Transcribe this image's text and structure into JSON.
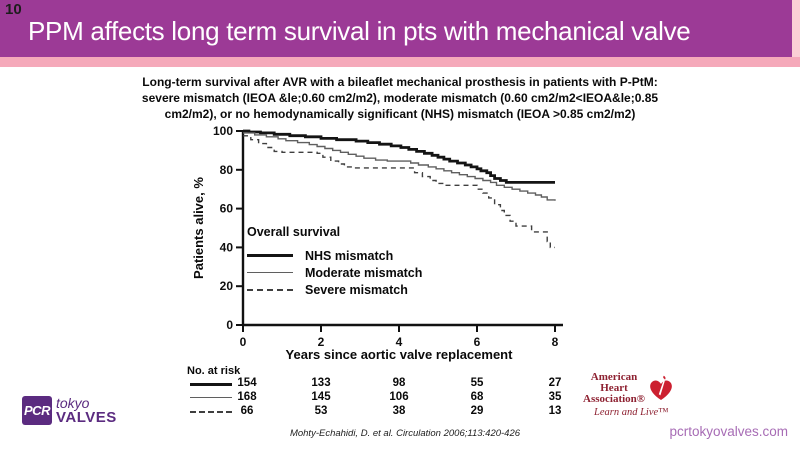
{
  "slide": {
    "number": "10",
    "header_title": "PPM affects long term survival in pts with mechanical valve",
    "citation": "Mohty-Echahidi, D. et al. Circulation 2006;113:420-426",
    "footer_site": "pcrtokyovalves.com"
  },
  "colors": {
    "header_purple": "#9C3A96",
    "stripe_pink": "#F5A9BA",
    "edge_pink": "#FBCFD5",
    "brand_purple": "#5B2B80",
    "site_purple": "#A76CB5",
    "aha_red": "#8E2232",
    "heart_red": "#CC2030"
  },
  "subtitle": {
    "lines": [
      "Long-term survival after AVR with a bileaflet mechanical prosthesis in patients with P-PtM:",
      "severe mismatch (IEOA &le;0.60 cm2/m2), moderate mismatch (0.60 cm2/m2<IEOA&le;0.85",
      "cm2/m2), or no hemodynamically significant (NHS) mismatch (IEOA >0.85 cm2/m2)"
    ]
  },
  "chart_data": {
    "type": "line",
    "subtype": "kaplan-meier-step",
    "xlabel": "Years since aortic valve replacement",
    "ylabel": "Patients alive, %",
    "xlim": [
      0,
      8
    ],
    "ylim": [
      0,
      100
    ],
    "xticks": [
      0,
      2,
      4,
      6,
      8
    ],
    "yticks": [
      0,
      20,
      40,
      60,
      80,
      100
    ],
    "grid": false,
    "legend_title": "Overall survival",
    "legend_position": "inside-lower-left",
    "series": [
      {
        "name": "NHS mismatch",
        "style": "thick-solid",
        "color": "#141414",
        "points": [
          [
            0,
            100
          ],
          [
            0.15,
            99.5
          ],
          [
            0.45,
            99
          ],
          [
            0.8,
            98.3
          ],
          [
            1.2,
            97.6
          ],
          [
            1.6,
            97
          ],
          [
            2.0,
            96.2
          ],
          [
            2.4,
            95.5
          ],
          [
            2.9,
            94.8
          ],
          [
            3.2,
            94
          ],
          [
            3.5,
            93.2
          ],
          [
            3.8,
            92.3
          ],
          [
            4.05,
            91.5
          ],
          [
            4.25,
            90.5
          ],
          [
            4.45,
            89.5
          ],
          [
            4.65,
            88.5
          ],
          [
            4.85,
            87.5
          ],
          [
            5.0,
            86.5
          ],
          [
            5.15,
            85.5
          ],
          [
            5.3,
            84.5
          ],
          [
            5.5,
            83.5
          ],
          [
            5.7,
            82.5
          ],
          [
            5.85,
            81.5
          ],
          [
            6.0,
            80.5
          ],
          [
            6.1,
            79.5
          ],
          [
            6.25,
            78.5
          ],
          [
            6.35,
            77
          ],
          [
            6.45,
            75.5
          ],
          [
            6.6,
            74.5
          ],
          [
            6.75,
            73.5
          ],
          [
            8,
            73.5
          ]
        ]
      },
      {
        "name": "Moderate mismatch",
        "style": "thin-solid",
        "color": "#5f5f5f",
        "points": [
          [
            0,
            99
          ],
          [
            0.3,
            98
          ],
          [
            0.6,
            97
          ],
          [
            0.9,
            96
          ],
          [
            1.1,
            95
          ],
          [
            1.4,
            94
          ],
          [
            1.7,
            93
          ],
          [
            1.9,
            92
          ],
          [
            2.1,
            91
          ],
          [
            2.3,
            90
          ],
          [
            2.5,
            89
          ],
          [
            2.7,
            88
          ],
          [
            2.9,
            87
          ],
          [
            3.1,
            86
          ],
          [
            3.4,
            85
          ],
          [
            3.7,
            84.5
          ],
          [
            4.3,
            83.5
          ],
          [
            4.5,
            82.5
          ],
          [
            4.75,
            81.5
          ],
          [
            4.95,
            80.5
          ],
          [
            5.15,
            79.5
          ],
          [
            5.35,
            78.5
          ],
          [
            5.55,
            77.5
          ],
          [
            5.75,
            76.5
          ],
          [
            5.95,
            75.5
          ],
          [
            6.15,
            74.5
          ],
          [
            6.35,
            73.5
          ],
          [
            6.5,
            72
          ],
          [
            6.7,
            71
          ],
          [
            6.9,
            70
          ],
          [
            7.1,
            69
          ],
          [
            7.3,
            68
          ],
          [
            7.5,
            67
          ],
          [
            7.65,
            66
          ],
          [
            7.8,
            64.5
          ],
          [
            8,
            64
          ]
        ]
      },
      {
        "name": "Severe mismatch",
        "style": "dashed",
        "color": "#3f3f3f",
        "points": [
          [
            0,
            97.5
          ],
          [
            0.2,
            95.5
          ],
          [
            0.4,
            93.5
          ],
          [
            0.6,
            91.5
          ],
          [
            0.8,
            89.5
          ],
          [
            1.0,
            89
          ],
          [
            1.9,
            88.5
          ],
          [
            2.05,
            86.5
          ],
          [
            2.25,
            84.5
          ],
          [
            2.45,
            83
          ],
          [
            2.6,
            81.5
          ],
          [
            2.8,
            81
          ],
          [
            4.4,
            78.5
          ],
          [
            4.6,
            76.5
          ],
          [
            4.8,
            74.5
          ],
          [
            4.95,
            73
          ],
          [
            5.15,
            72
          ],
          [
            6.0,
            70
          ],
          [
            6.15,
            68
          ],
          [
            6.3,
            65.5
          ],
          [
            6.45,
            62
          ],
          [
            6.6,
            59
          ],
          [
            6.7,
            56.5
          ],
          [
            6.85,
            53.5
          ],
          [
            7.0,
            51
          ],
          [
            7.4,
            48
          ],
          [
            7.8,
            43
          ],
          [
            7.88,
            40
          ],
          [
            8,
            40
          ]
        ]
      }
    ],
    "risk_table": {
      "label": "No. at risk",
      "timepoints": [
        0,
        2,
        4,
        6,
        8
      ],
      "rows": [
        {
          "series": "NHS mismatch",
          "style": "thick-solid",
          "values": [
            154,
            133,
            98,
            55,
            27
          ]
        },
        {
          "series": "Moderate mismatch",
          "style": "thin-solid",
          "values": [
            168,
            145,
            106,
            68,
            35
          ]
        },
        {
          "series": "Severe mismatch",
          "style": "dashed",
          "values": [
            66,
            53,
            38,
            29,
            13
          ]
        }
      ]
    }
  },
  "logos": {
    "aha": {
      "line1": "American Heart",
      "line2": "Association®",
      "tagline": "Learn and Live™"
    },
    "pcr": {
      "square": "PCR",
      "top": "tokyo",
      "bottom": "VALVES"
    }
  }
}
